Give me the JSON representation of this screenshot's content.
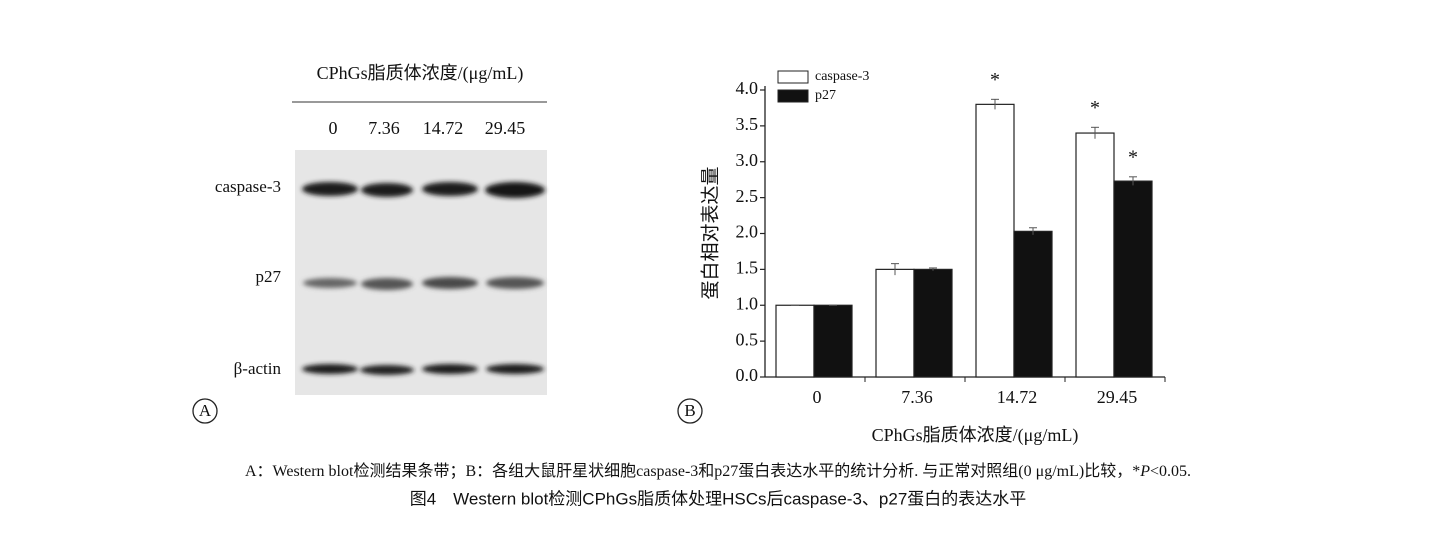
{
  "panel_a": {
    "label": "A",
    "header": "CPhGs脂质体浓度/(μg/mL)",
    "concentrations": [
      "0",
      "7.36",
      "14.72",
      "29.45"
    ],
    "bands": [
      "caspase-3",
      "p27",
      "β-actin"
    ]
  },
  "chart_data": {
    "type": "bar",
    "panel_label": "B",
    "xlabel": "CPhGs脂质体浓度/(μg/mL)",
    "ylabel": "蛋白相对表达量",
    "categories": [
      "0",
      "7.36",
      "14.72",
      "29.45"
    ],
    "series": [
      {
        "name": "caspase-3",
        "color": "#ffffff",
        "values": [
          1.0,
          1.5,
          3.8,
          3.4
        ],
        "errors": [
          0,
          0.08,
          0.07,
          0.08
        ],
        "annotations": [
          null,
          null,
          "*",
          "*"
        ]
      },
      {
        "name": "p27",
        "color": "#111111",
        "values": [
          1.0,
          1.5,
          2.03,
          2.73
        ],
        "errors": [
          0,
          0.02,
          0.05,
          0.06
        ],
        "annotations": [
          null,
          null,
          null,
          "*"
        ]
      }
    ],
    "ylim": [
      0,
      4.0
    ],
    "yticks": [
      {
        "value": 0,
        "label": "0.0"
      },
      0.5,
      {
        "value": 1,
        "label": "1.0"
      },
      1.5,
      {
        "value": 2,
        "label": "2.0"
      },
      2.5,
      {
        "value": 3,
        "label": "3.0"
      },
      3.5,
      {
        "value": 4,
        "label": "4.0"
      }
    ],
    "legend": "upper left"
  },
  "caption": {
    "note": [
      "A：Western blot检测结果条带；B：各组大鼠肝星状细胞caspase-3和p27蛋白表达水平的统计分析. 与正常对照组(0 μg/mL)比较，*",
      "P",
      "<0.05."
    ],
    "title": "图4　Western blot检测CPhGs脂质体处理HSCs后caspase-3、p27蛋白的表达水平"
  }
}
